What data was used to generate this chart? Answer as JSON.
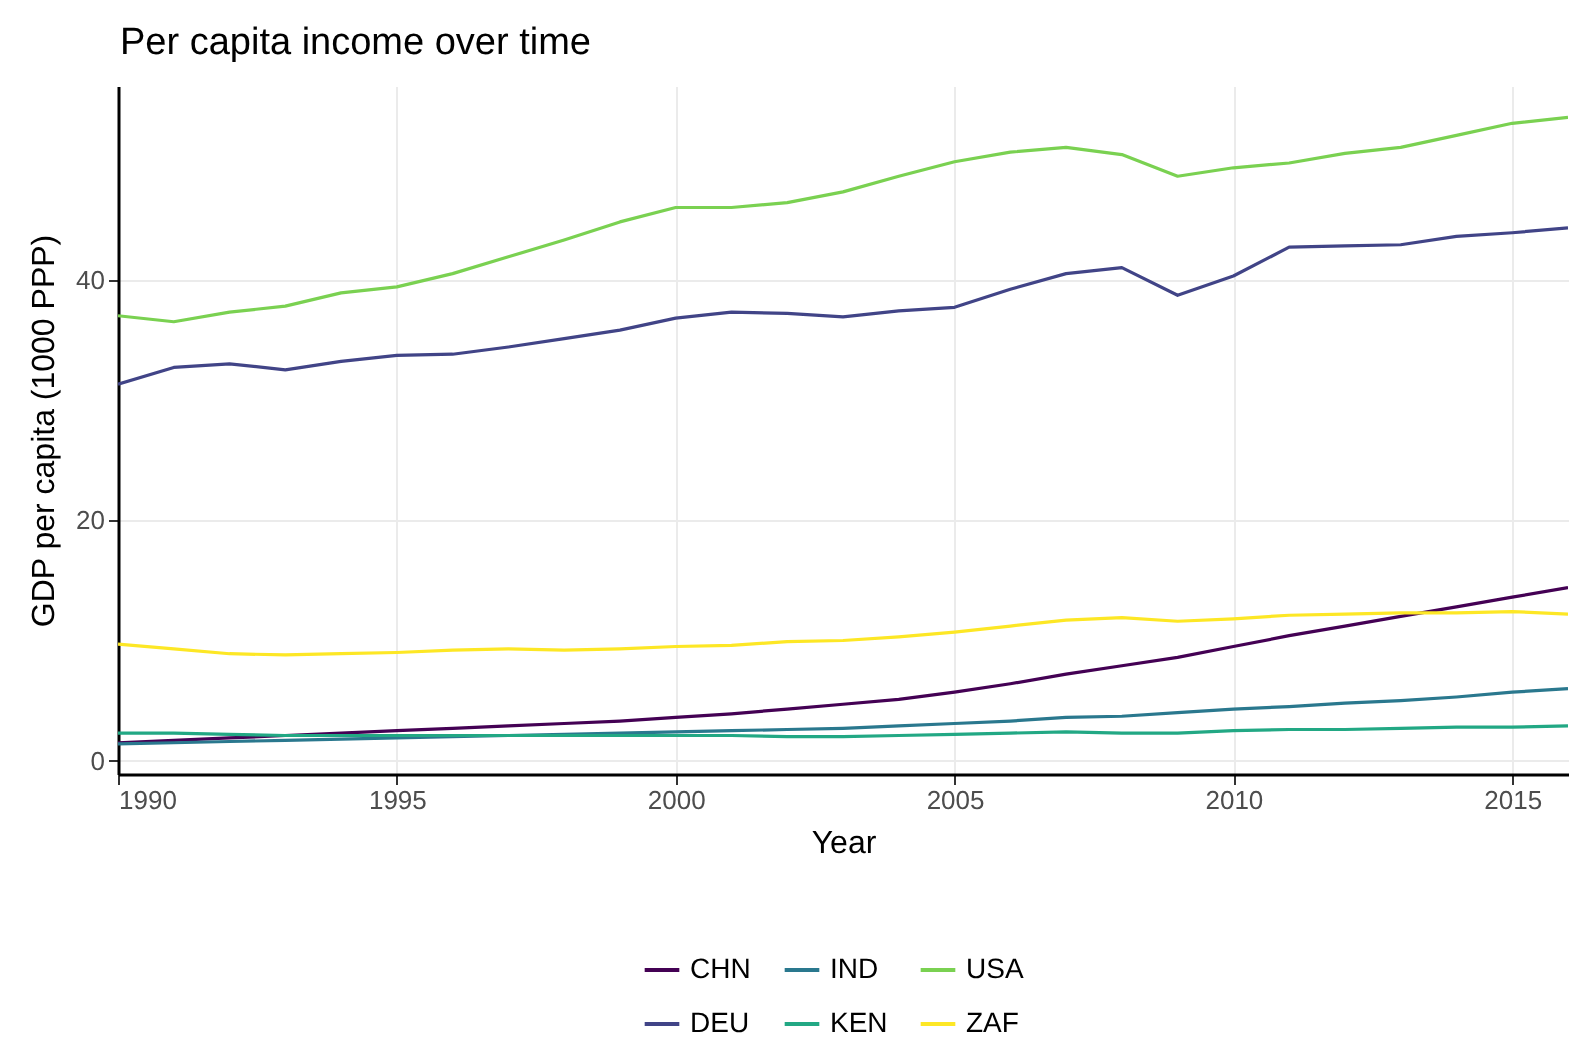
{
  "chart_data": {
    "type": "line",
    "title": "Per capita income over time",
    "xlabel": "Year",
    "ylabel": "GDP per capita (1000 PPP)",
    "x": [
      1990,
      1991,
      1992,
      1993,
      1994,
      1995,
      1996,
      1997,
      1998,
      1999,
      2000,
      2001,
      2002,
      2003,
      2004,
      2005,
      2006,
      2007,
      2008,
      2009,
      2010,
      2011,
      2012,
      2013,
      2014,
      2015,
      2016
    ],
    "series": [
      {
        "name": "CHN",
        "color": "#440154",
        "values": [
          1.5,
          1.7,
          1.9,
          2.1,
          2.3,
          2.5,
          2.7,
          2.9,
          3.1,
          3.3,
          3.6,
          3.9,
          4.3,
          4.7,
          5.1,
          5.7,
          6.4,
          7.2,
          7.9,
          8.6,
          9.5,
          10.4,
          11.2,
          12.0,
          12.8,
          13.6,
          14.4
        ]
      },
      {
        "name": "DEU",
        "color": "#414487",
        "values": [
          31.3,
          32.7,
          33.0,
          32.5,
          33.2,
          33.7,
          33.8,
          34.4,
          35.1,
          35.8,
          36.8,
          37.3,
          37.2,
          36.9,
          37.4,
          37.7,
          39.2,
          40.5,
          41.0,
          38.7,
          40.3,
          42.7,
          42.8,
          42.9,
          43.6,
          43.9,
          44.3
        ]
      },
      {
        "name": "IND",
        "color": "#2a788e",
        "values": [
          1.4,
          1.5,
          1.6,
          1.7,
          1.8,
          1.9,
          2.0,
          2.1,
          2.2,
          2.3,
          2.4,
          2.5,
          2.6,
          2.7,
          2.9,
          3.1,
          3.3,
          3.6,
          3.7,
          4.0,
          4.3,
          4.5,
          4.8,
          5.0,
          5.3,
          5.7,
          6.0
        ]
      },
      {
        "name": "KEN",
        "color": "#22a884",
        "values": [
          2.3,
          2.3,
          2.2,
          2.1,
          2.1,
          2.1,
          2.1,
          2.1,
          2.1,
          2.1,
          2.1,
          2.1,
          2.0,
          2.0,
          2.1,
          2.2,
          2.3,
          2.4,
          2.3,
          2.3,
          2.5,
          2.6,
          2.6,
          2.7,
          2.8,
          2.8,
          2.9
        ]
      },
      {
        "name": "USA",
        "color": "#7ad151",
        "values": [
          37.0,
          36.5,
          37.3,
          37.8,
          38.9,
          39.4,
          40.5,
          41.9,
          43.3,
          44.8,
          46.0,
          46.0,
          46.4,
          47.3,
          48.6,
          49.8,
          50.6,
          51.0,
          50.4,
          48.6,
          49.3,
          49.7,
          50.5,
          51.0,
          52.0,
          53.0,
          53.5
        ]
      },
      {
        "name": "ZAF",
        "color": "#fde725",
        "values": [
          9.7,
          9.3,
          8.9,
          8.8,
          8.9,
          9.0,
          9.2,
          9.3,
          9.2,
          9.3,
          9.5,
          9.6,
          9.9,
          10.0,
          10.3,
          10.7,
          11.2,
          11.7,
          11.9,
          11.6,
          11.8,
          12.1,
          12.2,
          12.3,
          12.3,
          12.4,
          12.2
        ]
      }
    ],
    "xlim": [
      1990,
      2016
    ],
    "xticks": [
      1990,
      1995,
      2000,
      2005,
      2010,
      2015
    ],
    "ylim": [
      -1.1,
      56.1
    ],
    "yticks": [
      0,
      20,
      40
    ],
    "grid": true,
    "legend": "bottom",
    "marker": "none",
    "line_style": "solid"
  }
}
